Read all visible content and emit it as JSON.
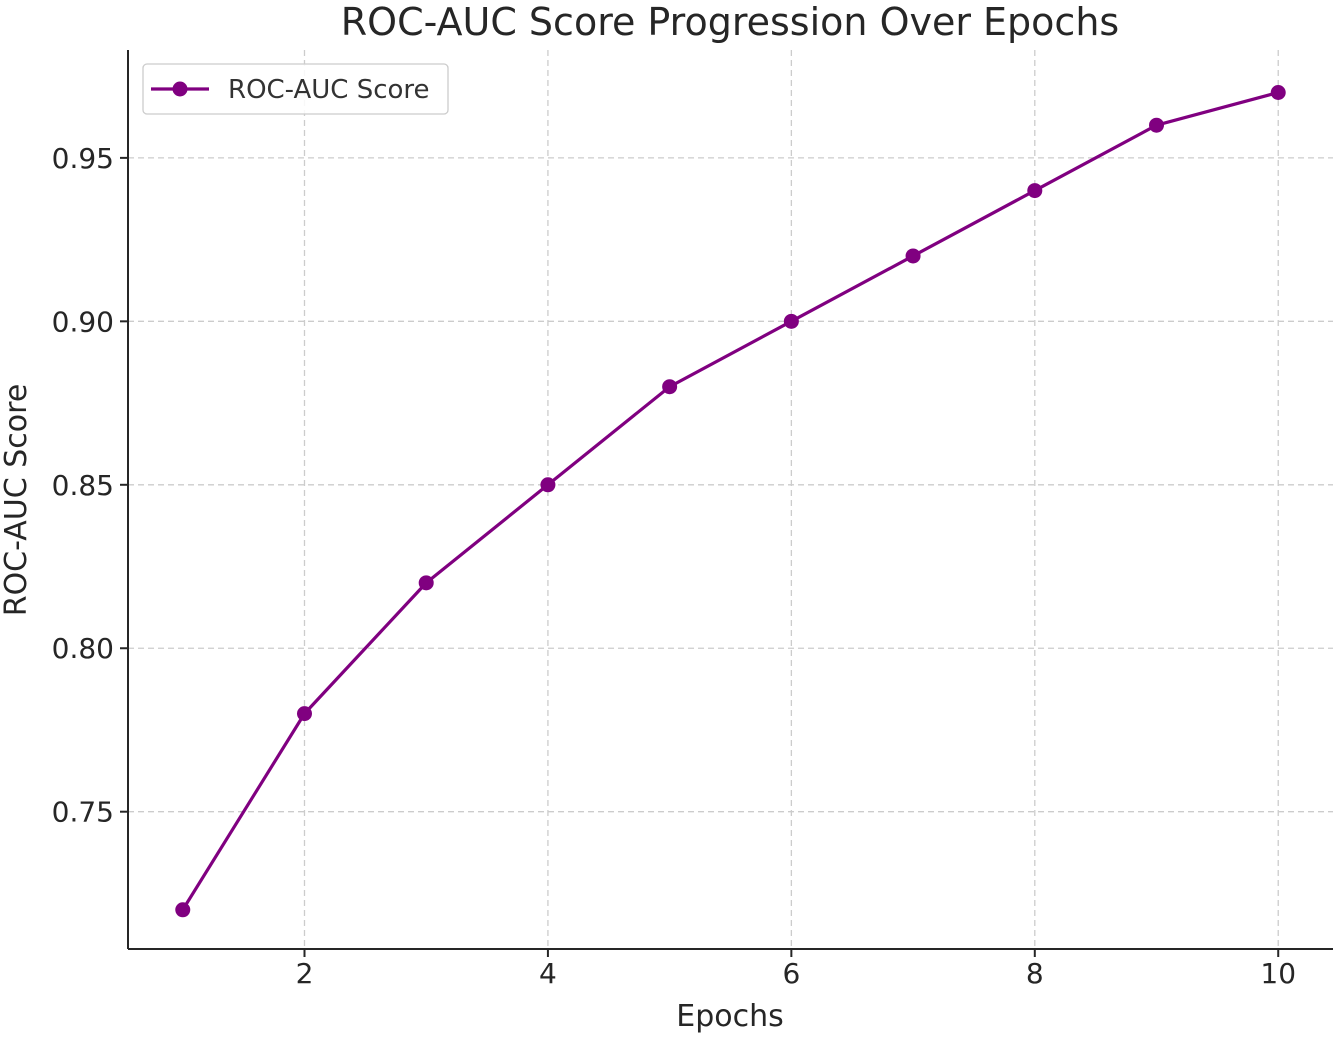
{
  "chart_data": {
    "type": "line",
    "title": "ROC-AUC Score Progression Over Epochs",
    "xlabel": "Epochs",
    "ylabel": "ROC-AUC Score",
    "x": [
      1,
      2,
      3,
      4,
      5,
      6,
      7,
      8,
      9,
      10
    ],
    "series": [
      {
        "name": "ROC-AUC Score",
        "values": [
          0.72,
          0.78,
          0.82,
          0.85,
          0.88,
          0.9,
          0.92,
          0.94,
          0.96,
          0.97
        ],
        "color": "#800080",
        "marker": "circle"
      }
    ],
    "xlim": [
      0.55,
      10.45
    ],
    "ylim": [
      0.708,
      0.983
    ],
    "xticks": [
      2,
      4,
      6,
      8,
      10
    ],
    "xtick_labels": [
      "2",
      "4",
      "6",
      "8",
      "10"
    ],
    "yticks": [
      0.75,
      0.8,
      0.85,
      0.9,
      0.95
    ],
    "ytick_labels": [
      "0.75",
      "0.80",
      "0.85",
      "0.90",
      "0.95"
    ],
    "grid": true,
    "legend": {
      "position": "top-left"
    }
  }
}
